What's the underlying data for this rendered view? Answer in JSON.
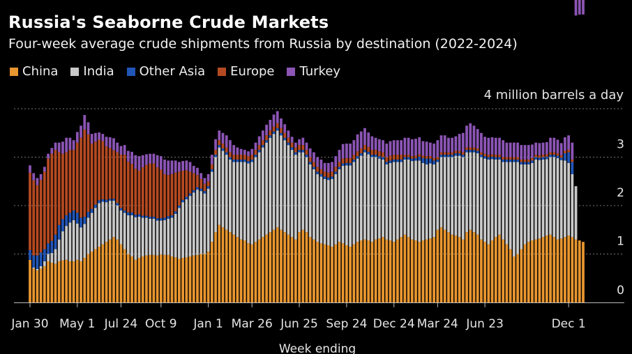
{
  "chart_data": {
    "type": "bar",
    "stacked": true,
    "title": "Russia's Seaborne Crude Markets",
    "subtitle": "Four-week average crude shipments from Russia by destination (2022-2024)",
    "unit_label": "4 million barrels a day",
    "xlabel": "Week ending",
    "ylim": [
      0,
      4
    ],
    "yticks": [
      0,
      1,
      2,
      3
    ],
    "x_tick_labels": [
      "Jan 30",
      "May 1",
      "Jul 24",
      "Oct 9",
      "Jan 1",
      "Mar 26",
      "Jun 25",
      "Sep 24",
      "Dec 24",
      "Mar 24",
      "Jun 23",
      "Dec 1"
    ],
    "x_tick_index": [
      0,
      13,
      25,
      36,
      49,
      61,
      74,
      87,
      100,
      112,
      125,
      148
    ],
    "legend_placement": "top-left",
    "grid": true,
    "colors": {
      "China": "#e8962f",
      "India": "#c9c9c9",
      "Other Asia": "#2156b8",
      "Europe": "#b54a22",
      "Turkey": "#8c55b5"
    },
    "series": [
      {
        "name": "China",
        "values": [
          0.88,
          0.7,
          0.66,
          0.7,
          0.75,
          0.85,
          0.82,
          0.8,
          0.85,
          0.87,
          0.88,
          0.85,
          0.85,
          0.88,
          0.85,
          0.92,
          1.0,
          1.05,
          1.1,
          1.15,
          1.2,
          1.25,
          1.3,
          1.35,
          1.3,
          1.2,
          1.1,
          1.0,
          0.95,
          0.88,
          0.92,
          0.95,
          0.97,
          0.98,
          0.98,
          0.97,
          0.99,
          0.98,
          0.98,
          0.95,
          0.93,
          0.9,
          0.92,
          0.93,
          0.95,
          0.97,
          0.98,
          1.0,
          1.0,
          1.05,
          1.25,
          1.45,
          1.6,
          1.55,
          1.5,
          1.45,
          1.4,
          1.35,
          1.3,
          1.28,
          1.22,
          1.2,
          1.25,
          1.3,
          1.35,
          1.4,
          1.45,
          1.5,
          1.55,
          1.5,
          1.45,
          1.4,
          1.35,
          1.3,
          1.45,
          1.5,
          1.45,
          1.35,
          1.3,
          1.25,
          1.22,
          1.2,
          1.18,
          1.15,
          1.2,
          1.25,
          1.22,
          1.18,
          1.15,
          1.2,
          1.25,
          1.28,
          1.3,
          1.28,
          1.25,
          1.3,
          1.32,
          1.35,
          1.3,
          1.28,
          1.25,
          1.3,
          1.35,
          1.4,
          1.35,
          1.3,
          1.28,
          1.25,
          1.28,
          1.3,
          1.32,
          1.35,
          1.5,
          1.55,
          1.5,
          1.45,
          1.4,
          1.38,
          1.35,
          1.3,
          1.45,
          1.5,
          1.45,
          1.4,
          1.3,
          1.25,
          1.2,
          1.28,
          1.35,
          1.4,
          1.3,
          1.2,
          1.1,
          0.95,
          1.0,
          1.1,
          1.2,
          1.25,
          1.28,
          1.3,
          1.32,
          1.35,
          1.38,
          1.4,
          1.35,
          1.3,
          1.32,
          1.35,
          1.38,
          1.35,
          1.3,
          1.28,
          1.25
        ]
      },
      {
        "name": "India",
        "values": [
          0.0,
          0.02,
          0.03,
          0.05,
          0.1,
          0.15,
          0.2,
          0.3,
          0.45,
          0.6,
          0.7,
          0.8,
          0.85,
          0.75,
          0.7,
          0.7,
          0.75,
          0.8,
          0.85,
          0.9,
          0.88,
          0.82,
          0.8,
          0.75,
          0.7,
          0.7,
          0.75,
          0.8,
          0.85,
          0.88,
          0.85,
          0.8,
          0.78,
          0.75,
          0.75,
          0.72,
          0.7,
          0.72,
          0.75,
          0.8,
          0.9,
          1.05,
          1.15,
          1.2,
          1.25,
          1.3,
          1.35,
          1.3,
          1.25,
          1.3,
          1.45,
          1.55,
          1.6,
          1.58,
          1.55,
          1.5,
          1.5,
          1.55,
          1.6,
          1.62,
          1.65,
          1.7,
          1.75,
          1.8,
          1.85,
          1.9,
          1.95,
          1.98,
          2.0,
          1.95,
          1.9,
          1.85,
          1.8,
          1.75,
          1.65,
          1.6,
          1.55,
          1.5,
          1.45,
          1.4,
          1.38,
          1.35,
          1.35,
          1.4,
          1.45,
          1.5,
          1.6,
          1.65,
          1.68,
          1.7,
          1.72,
          1.75,
          1.8,
          1.78,
          1.75,
          1.7,
          1.65,
          1.6,
          1.55,
          1.6,
          1.65,
          1.6,
          1.55,
          1.55,
          1.6,
          1.62,
          1.65,
          1.68,
          1.6,
          1.55,
          1.55,
          1.5,
          1.4,
          1.45,
          1.5,
          1.55,
          1.6,
          1.65,
          1.68,
          1.7,
          1.65,
          1.6,
          1.65,
          1.68,
          1.7,
          1.72,
          1.75,
          1.68,
          1.6,
          1.55,
          1.6,
          1.7,
          1.8,
          1.95,
          1.9,
          1.75,
          1.65,
          1.6,
          1.6,
          1.65,
          1.62,
          1.6,
          1.58,
          1.6,
          1.65,
          1.68,
          1.62,
          1.58,
          1.5,
          1.3,
          1.1
        ]
      },
      {
        "name": "Other Asia",
        "values": [
          0.2,
          0.25,
          0.28,
          0.28,
          0.25,
          0.22,
          0.25,
          0.3,
          0.3,
          0.25,
          0.22,
          0.2,
          0.2,
          0.22,
          0.2,
          0.15,
          0.12,
          0.08,
          0.07,
          0.06,
          0.05,
          0.05,
          0.04,
          0.04,
          0.05,
          0.05,
          0.05,
          0.06,
          0.06,
          0.05,
          0.05,
          0.04,
          0.04,
          0.04,
          0.04,
          0.05,
          0.05,
          0.05,
          0.05,
          0.05,
          0.05,
          0.05,
          0.05,
          0.05,
          0.05,
          0.05,
          0.05,
          0.05,
          0.05,
          0.05,
          0.05,
          0.05,
          0.05,
          0.05,
          0.05,
          0.05,
          0.05,
          0.05,
          0.05,
          0.05,
          0.05,
          0.05,
          0.05,
          0.05,
          0.05,
          0.05,
          0.05,
          0.05,
          0.05,
          0.05,
          0.05,
          0.05,
          0.05,
          0.05,
          0.05,
          0.05,
          0.05,
          0.05,
          0.05,
          0.05,
          0.05,
          0.05,
          0.05,
          0.05,
          0.05,
          0.05,
          0.05,
          0.05,
          0.05,
          0.05,
          0.05,
          0.05,
          0.05,
          0.05,
          0.05,
          0.05,
          0.05,
          0.05,
          0.05,
          0.05,
          0.05,
          0.05,
          0.05,
          0.05,
          0.05,
          0.05,
          0.05,
          0.08,
          0.1,
          0.12,
          0.1,
          0.08,
          0.05,
          0.05,
          0.05,
          0.05,
          0.05,
          0.05,
          0.05,
          0.05,
          0.05,
          0.05,
          0.05,
          0.05,
          0.05,
          0.05,
          0.05,
          0.05,
          0.05,
          0.05,
          0.05,
          0.05,
          0.05,
          0.05,
          0.05,
          0.05,
          0.05,
          0.05,
          0.05,
          0.05,
          0.05,
          0.05,
          0.05,
          0.05,
          0.05,
          0.05,
          0.05,
          0.15,
          0.22,
          0.25
        ]
      },
      {
        "name": "Europe",
        "values": [
          1.6,
          1.55,
          1.45,
          1.5,
          1.6,
          1.75,
          1.8,
          1.75,
          1.5,
          1.35,
          1.3,
          1.3,
          1.25,
          1.45,
          1.65,
          1.8,
          1.6,
          1.35,
          1.3,
          1.25,
          1.2,
          1.1,
          1.05,
          1.0,
          1.05,
          1.1,
          1.15,
          1.05,
          1.0,
          0.95,
          0.9,
          1.0,
          1.05,
          1.1,
          1.1,
          1.05,
          1.0,
          0.9,
          0.85,
          0.85,
          0.8,
          0.7,
          0.6,
          0.55,
          0.45,
          0.35,
          0.25,
          0.2,
          0.15,
          0.1,
          0.1,
          0.1,
          0.1,
          0.1,
          0.1,
          0.1,
          0.1,
          0.1,
          0.1,
          0.1,
          0.1,
          0.1,
          0.1,
          0.1,
          0.1,
          0.1,
          0.1,
          0.1,
          0.1,
          0.1,
          0.1,
          0.1,
          0.1,
          0.1,
          0.1,
          0.1,
          0.1,
          0.1,
          0.1,
          0.1,
          0.1,
          0.1,
          0.1,
          0.1,
          0.1,
          0.1,
          0.1,
          0.1,
          0.1,
          0.1,
          0.1,
          0.1,
          0.1,
          0.1,
          0.1,
          0.1,
          0.1,
          0.1,
          0.1,
          0.1,
          0.1,
          0.1,
          0.1,
          0.05,
          0.05,
          0.05,
          0.05,
          0.05,
          0.05,
          0.05,
          0.05,
          0.05,
          0.05,
          0.05,
          0.05,
          0.05,
          0.05,
          0.05,
          0.05,
          0.05,
          0.05,
          0.05,
          0.05,
          0.05,
          0.05,
          0.05,
          0.05,
          0.05,
          0.05,
          0.05,
          0.05,
          0.05,
          0.05,
          0.05,
          0.05,
          0.05,
          0.05,
          0.05,
          0.05,
          0.05,
          0.05,
          0.05,
          0.05,
          0.05,
          0.05,
          0.05,
          0.05,
          0.05,
          0.05,
          0.05,
          0.05,
          0.05,
          0.05
        ]
      },
      {
        "name": "Turkey",
        "values": [
          0.15,
          0.15,
          0.15,
          0.12,
          0.1,
          0.1,
          0.12,
          0.15,
          0.2,
          0.25,
          0.3,
          0.25,
          0.2,
          0.22,
          0.25,
          0.3,
          0.25,
          0.2,
          0.18,
          0.15,
          0.15,
          0.2,
          0.22,
          0.25,
          0.2,
          0.18,
          0.2,
          0.22,
          0.25,
          0.28,
          0.3,
          0.25,
          0.22,
          0.2,
          0.2,
          0.25,
          0.28,
          0.3,
          0.3,
          0.28,
          0.25,
          0.2,
          0.2,
          0.2,
          0.2,
          0.15,
          0.15,
          0.12,
          0.12,
          0.15,
          0.2,
          0.22,
          0.2,
          0.22,
          0.25,
          0.25,
          0.2,
          0.15,
          0.12,
          0.1,
          0.1,
          0.12,
          0.15,
          0.18,
          0.2,
          0.22,
          0.22,
          0.25,
          0.25,
          0.2,
          0.18,
          0.15,
          0.12,
          0.1,
          0.12,
          0.15,
          0.15,
          0.18,
          0.2,
          0.2,
          0.2,
          0.18,
          0.2,
          0.2,
          0.22,
          0.25,
          0.3,
          0.3,
          0.3,
          0.3,
          0.35,
          0.35,
          0.35,
          0.3,
          0.28,
          0.25,
          0.25,
          0.25,
          0.28,
          0.3,
          0.3,
          0.3,
          0.3,
          0.35,
          0.35,
          0.35,
          0.35,
          0.35,
          0.3,
          0.3,
          0.28,
          0.3,
          0.35,
          0.35,
          0.35,
          0.3,
          0.3,
          0.3,
          0.35,
          0.4,
          0.45,
          0.5,
          0.45,
          0.4,
          0.4,
          0.35,
          0.35,
          0.35,
          0.35,
          0.35,
          0.35,
          0.3,
          0.3,
          0.3,
          0.3,
          0.3,
          0.3,
          0.3,
          0.28,
          0.25,
          0.25,
          0.25,
          0.25,
          0.3,
          0.3,
          0.28,
          0.25,
          0.28,
          0.3,
          0.35,
          0.32,
          0.3,
          0.3,
          0.28
        ]
      }
    ]
  }
}
